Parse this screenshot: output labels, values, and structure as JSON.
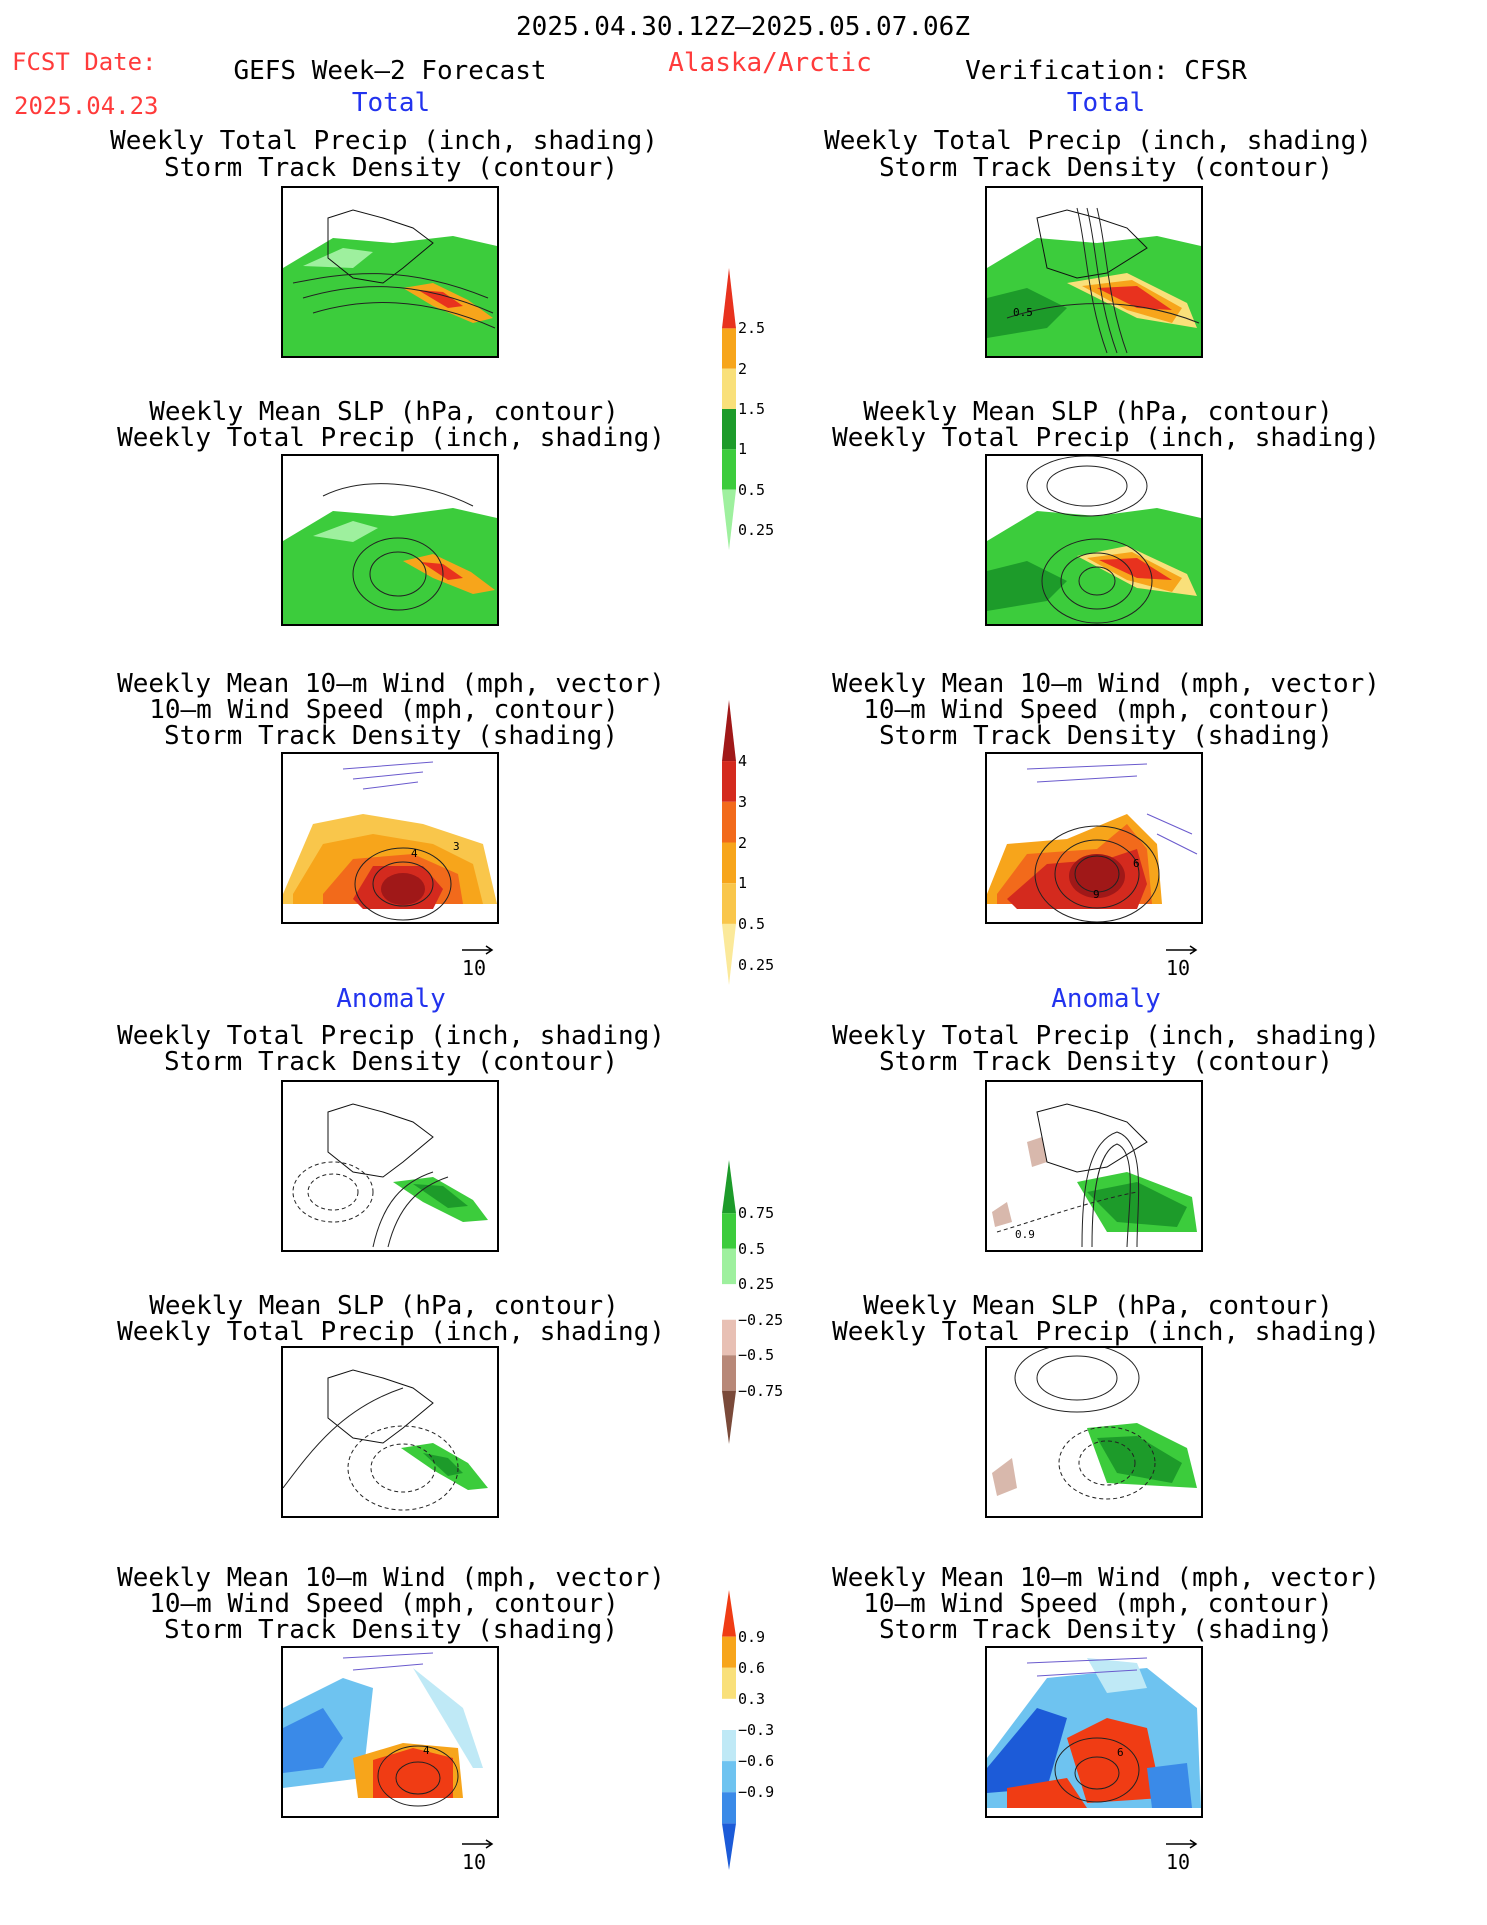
{
  "header": {
    "date_range": "2025.04.30.12Z–2025.05.07.06Z",
    "fcst_label": "FCST Date:",
    "fcst_date": "2025.04.23",
    "left_title": "GEFS Week–2 Forecast",
    "region": "Alaska/Arctic",
    "right_title": "Verification: CFSR"
  },
  "sections": {
    "total": "Total",
    "anomaly": "Anomaly"
  },
  "titles": {
    "precip_track": [
      "Weekly Total Precip (inch, shading)",
      "Storm Track Density (contour)"
    ],
    "slp_precip": [
      "Weekly Mean SLP (hPa, contour)",
      "Weekly Total Precip (inch, shading)"
    ],
    "wind_track": [
      "Weekly Mean 10–m Wind (mph, vector)",
      "10–m Wind Speed (mph, contour)",
      "Storm Track Density (shading)"
    ]
  },
  "panel_labels": {
    "total_precip_right": "0.5",
    "total_wind_left": "4",
    "total_wind_left_b": "3",
    "total_wind_right": "6",
    "total_wind_right_b": "9",
    "anom_precip_right": "0.9",
    "anom_wind_left": "4",
    "anom_wind_right": "6"
  },
  "vector_ref": "10",
  "colorbars": [
    {
      "name": "precip-total",
      "ticks": [
        "2.5",
        "2",
        "1.5",
        "1",
        "0.5",
        "0.25"
      ],
      "colors": [
        "#e8321e",
        "#f7a51b",
        "#f9e07a",
        "#1d9b2a",
        "#3ccc3c",
        "#9ef09e"
      ]
    },
    {
      "name": "track-total",
      "ticks": [
        "4",
        "3",
        "2",
        "1",
        "0.5",
        "0.25"
      ],
      "colors": [
        "#a01818",
        "#d42a1e",
        "#f26a1b",
        "#f7a51b",
        "#f9c64b",
        "#fbe99a"
      ]
    },
    {
      "name": "precip-anom",
      "ticks": [
        "0.75",
        "0.5",
        "0.25",
        "−0.25",
        "−0.5",
        "−0.75"
      ],
      "colors": [
        "#1d9b2a",
        "#3ccc3c",
        "#9ef09e",
        "#ffffff",
        "#e8c0b4",
        "#b88878",
        "#7a4a3a"
      ]
    },
    {
      "name": "track-anom",
      "ticks": [
        "0.9",
        "0.6",
        "0.3",
        "−0.3",
        "−0.6",
        "−0.9"
      ],
      "colors": [
        "#f03c14",
        "#f7a51b",
        "#f9e07a",
        "#ffffff",
        "#bfe9f6",
        "#6ec3f0",
        "#3a8ae8",
        "#1c5bd8"
      ]
    }
  ]
}
